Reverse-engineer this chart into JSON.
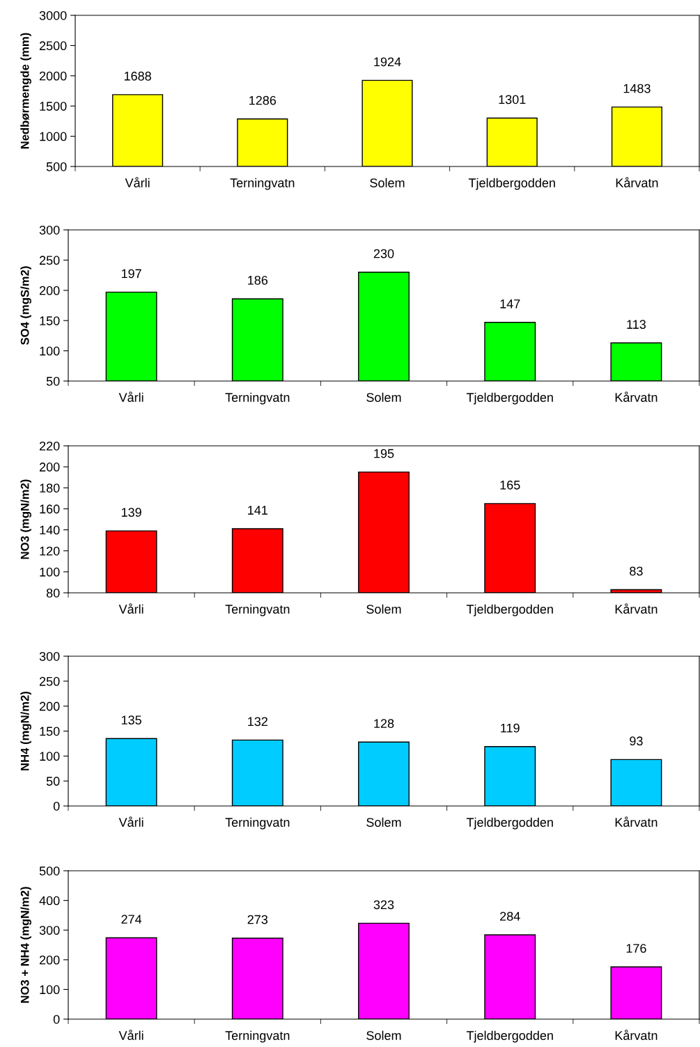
{
  "chart_data": [
    {
      "type": "bar",
      "ylabel": "Nedbørmengde (mm)",
      "categories": [
        "Vårli",
        "Terningvatn",
        "Solem",
        "Tjeldbergodden",
        "Kårvatn"
      ],
      "values": [
        1688,
        1286,
        1924,
        1301,
        1483
      ],
      "color": "#ffff00",
      "ylim": [
        500,
        3000
      ],
      "yticks": [
        500,
        1000,
        1500,
        2000,
        2500,
        3000
      ],
      "data_labels": true
    },
    {
      "type": "bar",
      "ylabel": "SO4 (mgS/m2)",
      "categories": [
        "Vårli",
        "Terningvatn",
        "Solem",
        "Tjeldbergodden",
        "Kårvatn"
      ],
      "values": [
        197,
        186,
        230,
        147,
        113
      ],
      "color": "#00ff00",
      "ylim": [
        50,
        300
      ],
      "yticks": [
        50,
        100,
        150,
        200,
        250,
        300
      ],
      "data_labels": true
    },
    {
      "type": "bar",
      "ylabel": "NO3 (mgN/m2)",
      "categories": [
        "Vårli",
        "Terningvatn",
        "Solem",
        "Tjeldbergodden",
        "Kårvatn"
      ],
      "values": [
        139,
        141,
        195,
        165,
        83
      ],
      "color": "#ff0000",
      "ylim": [
        80,
        220
      ],
      "yticks": [
        80,
        100,
        120,
        140,
        160,
        180,
        200,
        220
      ],
      "data_labels": true
    },
    {
      "type": "bar",
      "ylabel": "NH4 (mgN/m2)",
      "categories": [
        "Vårli",
        "Terningvatn",
        "Solem",
        "Tjeldbergodden",
        "Kårvatn"
      ],
      "values": [
        135,
        132,
        128,
        119,
        93
      ],
      "color": "#00ccff",
      "ylim": [
        0,
        300
      ],
      "yticks": [
        0,
        50,
        100,
        150,
        200,
        250,
        300
      ],
      "data_labels": true
    },
    {
      "type": "bar",
      "ylabel": "NO3 + NH4 (mgN/m2)",
      "categories": [
        "Vårli",
        "Terningvatn",
        "Solem",
        "Tjeldbergodden",
        "Kårvatn"
      ],
      "values": [
        274,
        273,
        323,
        284,
        176
      ],
      "color": "#ff00ff",
      "ylim": [
        0,
        500
      ],
      "yticks": [
        0,
        100,
        200,
        300,
        400,
        500
      ],
      "data_labels": true
    }
  ]
}
